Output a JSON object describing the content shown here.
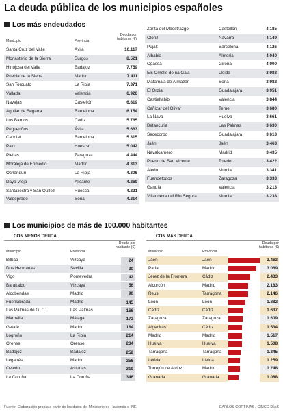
{
  "title": "La deuda pública de los municipios españoles",
  "section_top": {
    "heading": "Los más endeudados",
    "col_municipio": "Municipio",
    "col_provincia": "Provincia",
    "col_deuda": "Deuda por habitante (€)",
    "left_rows": [
      [
        "Santa Cruz del Valle",
        "Ávila",
        "10.117"
      ],
      [
        "Monasterio de la Sierra",
        "Burgos",
        "8.521"
      ],
      [
        "Hinojosa del Valle",
        "Badajoz",
        "7.759"
      ],
      [
        "Puebla de la Sierra",
        "Madrid",
        "7.411"
      ],
      [
        "San Torcuato",
        "La Rioja",
        "7.371"
      ],
      [
        "Vallada",
        "Valencia",
        "6.926"
      ],
      [
        "Navajas",
        "Castellón",
        "6.819"
      ],
      [
        "Aguilar de Segarra",
        "Barcelona",
        "6.154"
      ],
      [
        "Los Barrios",
        "Cádiz",
        "5.765"
      ],
      [
        "Pegueríños",
        "Ávila",
        "5.663"
      ],
      [
        "Capolat",
        "Barcelona",
        "5.315"
      ],
      [
        "Palo",
        "Huesca",
        "5.042"
      ],
      [
        "Pleitas",
        "Zaragoza",
        "4.444"
      ],
      [
        "Moraleja de Enmedio",
        "Madrid",
        "4.313"
      ],
      [
        "Ochánduri",
        "La Rioja",
        "4.306"
      ],
      [
        "Daya Vieja",
        "Alicante",
        "4.269"
      ],
      [
        "Santaliestra y San Quílez",
        "Huesca",
        "4.221"
      ],
      [
        "Valdeprado",
        "Soria",
        "4.214"
      ]
    ],
    "right_rows": [
      [
        "Zorita del Maestrazgo",
        "Castellón",
        "4.185"
      ],
      [
        "Olóriz",
        "Navarra",
        "4.149"
      ],
      [
        "Pujalt",
        "Barcelona",
        "4.126"
      ],
      [
        "Alhabia",
        "Almería",
        "4.040"
      ],
      [
        "Ogassa",
        "Girona",
        "4.000"
      ],
      [
        "Els Omells de na Gaia",
        "Lleida",
        "3.983"
      ],
      [
        "Matamala de Almazán",
        "Soria",
        "3.982"
      ],
      [
        "El Ordial",
        "Guadalajara",
        "3.951"
      ],
      [
        "Castielfabib",
        "Valencia",
        "3.844"
      ],
      [
        "Cañizar del Olivar",
        "Teruel",
        "3.680"
      ],
      [
        "La Nava",
        "Huelva",
        "3.661"
      ],
      [
        "Betancuria",
        "Las Palmas",
        "3.630"
      ],
      [
        "Sacecorbo",
        "Guadalajara",
        "3.613"
      ],
      [
        "Jaén",
        "Jaén",
        "3.463"
      ],
      [
        "Navalcarnero",
        "Madrid",
        "3.435"
      ],
      [
        "Puerto de San Vicente",
        "Toledo",
        "3.422"
      ],
      [
        "Aledo",
        "Murcia",
        "3.341"
      ],
      [
        "Fuendetodos",
        "Zaragoza",
        "3.333"
      ],
      [
        "Gandía",
        "Valencia",
        "3.213"
      ],
      [
        "Villanueva del Río Segura",
        "Murcia",
        "3.238"
      ]
    ]
  },
  "section_bottom": {
    "heading": "Los municipios de más de 100.000 habitantes",
    "left_sub": "CON MENOS DEUDA",
    "right_sub": "CON MÁS DEUDA",
    "col_municipio": "Municipio",
    "col_provincia": "Provincia",
    "col_deuda": "Deuda por habitante (€)",
    "left_rows": [
      [
        "Bilbao",
        "Vizcaya",
        "24"
      ],
      [
        "Dos Hermanas",
        "Sevilla",
        "30"
      ],
      [
        "Vigo",
        "Pontevedra",
        "42"
      ],
      [
        "Barakaldo",
        "Vizcaya",
        "56"
      ],
      [
        "Alcobendas",
        "Madrid",
        "90"
      ],
      [
        "Fuenlabrada",
        "Madrid",
        "145"
      ],
      [
        "Las Palmas de G. C.",
        "Las Palmas",
        "166"
      ],
      [
        "Marbella",
        "Málaga",
        "172"
      ],
      [
        "Getafe",
        "Madrid",
        "184"
      ],
      [
        "Logroño",
        "La Rioja",
        "214"
      ],
      [
        "Orense",
        "Orense",
        "234"
      ],
      [
        "Badajoz",
        "Badajoz",
        "252"
      ],
      [
        "Leganés",
        "Madrid",
        "256"
      ],
      [
        "Oviedo",
        "Asturias",
        "319"
      ],
      [
        "La Coruña",
        "La Coruña",
        "346"
      ]
    ],
    "right_rows": [
      [
        "Jaén",
        "Jaén",
        "3.463"
      ],
      [
        "Parla",
        "Madrid",
        "3.069"
      ],
      [
        "Jerez de la Frontera",
        "Cádiz",
        "2.433"
      ],
      [
        "Alcorcón",
        "Madrid",
        "2.183"
      ],
      [
        "Reus",
        "Tarragona",
        "2.146"
      ],
      [
        "León",
        "León",
        "1.882"
      ],
      [
        "Cádiz",
        "Cádiz",
        "1.637"
      ],
      [
        "Zaragoza",
        "Zaragoza",
        "1.609"
      ],
      [
        "Algeciras",
        "Cádiz",
        "1.534"
      ],
      [
        "Madrid",
        "Madrid",
        "1.517"
      ],
      [
        "Huelva",
        "Huelva",
        "1.508"
      ],
      [
        "Tarragona",
        "Tarragona",
        "1.345"
      ],
      [
        "Lérida",
        "Lleida",
        "1.259"
      ],
      [
        "Torrejón de Ardoz",
        "Madrid",
        "1.248"
      ],
      [
        "Granada",
        "Granada",
        "1.088"
      ]
    ]
  },
  "colors": {
    "bar": "#c4161c",
    "shade": "#e4e6ea",
    "highlight": "#f5e6c8"
  },
  "footer": {
    "source": "Fuente: Elaboración propia a partir de los datos del Ministerio de Hacienda e INE",
    "credit": "CARLOS CORTINAS / CINCO DÍAS"
  }
}
